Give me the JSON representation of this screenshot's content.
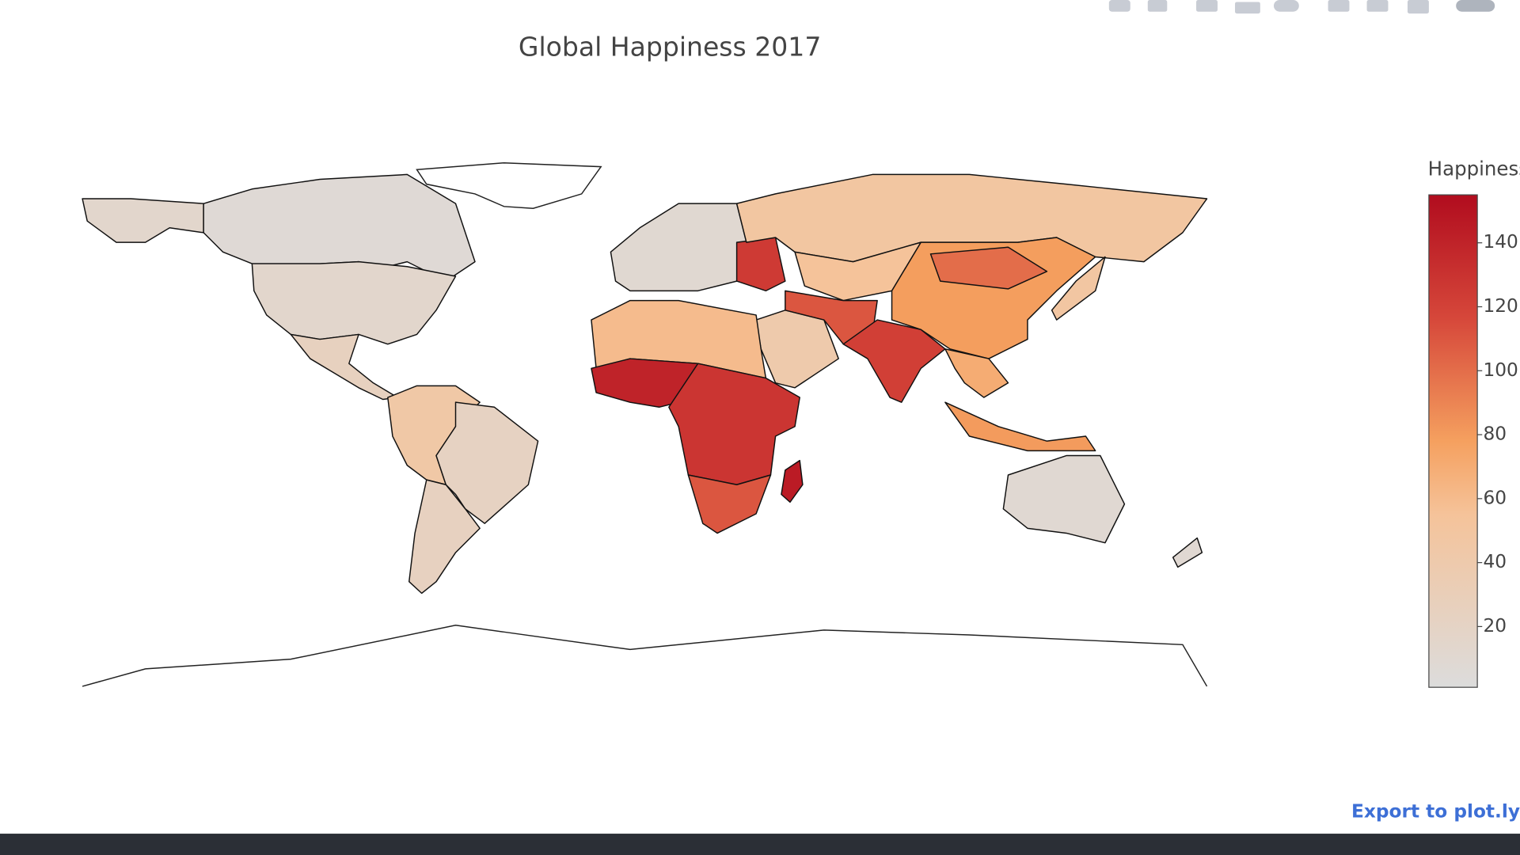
{
  "chart_data": {
    "type": "choropleth",
    "title": "Global Happiness 2017",
    "colorbar": {
      "title": "Happiness",
      "range": [
        1,
        155
      ],
      "ticks": [
        20,
        40,
        60,
        80,
        100,
        120,
        140
      ]
    },
    "colorscale": [
      [
        0,
        "#dcdcdc"
      ],
      [
        0.35,
        "#f5c39a"
      ],
      [
        0.5,
        "#f5a05f"
      ],
      [
        0.75,
        "#d6473a"
      ],
      [
        1,
        "#b10c1e"
      ]
    ],
    "values": [
      14,
      7,
      14,
      25,
      45,
      22,
      24,
      10,
      125,
      49,
      55,
      79,
      100,
      40,
      110,
      122,
      70,
      80,
      48,
      9,
      9,
      60,
      140,
      128,
      110,
      145
    ]
  },
  "export_link": "Export to plot.ly"
}
